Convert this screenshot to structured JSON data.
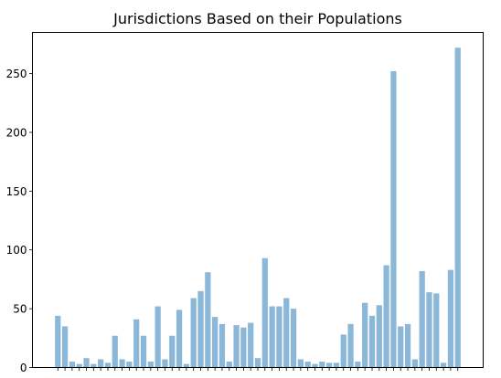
{
  "chart_data": {
    "type": "bar",
    "title": "Jurisdictions Based on their Populations",
    "xlabel": "",
    "ylabel": "",
    "ylim": [
      0,
      285
    ],
    "yticks": [
      0,
      50,
      100,
      150,
      200,
      250
    ],
    "ytick_labels": [
      "0",
      "50",
      "100",
      "150",
      "200",
      "250"
    ],
    "values": [
      44,
      35,
      5,
      3,
      8,
      3,
      7,
      4,
      27,
      7,
      5,
      41,
      27,
      5,
      52,
      7,
      27,
      49,
      3,
      59,
      65,
      81,
      43,
      37,
      5,
      36,
      34,
      38,
      8,
      93,
      52,
      52,
      59,
      50,
      7,
      5,
      3,
      5,
      4,
      4,
      28,
      37,
      5,
      55,
      44,
      53,
      87,
      252,
      35,
      37,
      7,
      82,
      64,
      63,
      4,
      83,
      272
    ],
    "bar_color": "#8bb8d9",
    "grid": false,
    "legend": "none"
  }
}
